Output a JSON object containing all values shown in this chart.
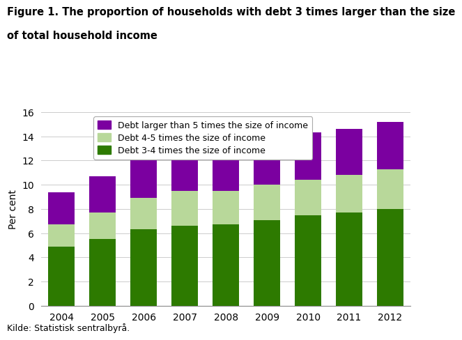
{
  "years": [
    "2004",
    "2005",
    "2006",
    "2007",
    "2008",
    "2009",
    "2010",
    "2011",
    "2012"
  ],
  "debt_3_4": [
    4.9,
    5.5,
    6.3,
    6.6,
    6.7,
    7.1,
    7.5,
    7.7,
    8.0
  ],
  "debt_4_5": [
    1.8,
    2.2,
    2.6,
    2.9,
    2.8,
    2.9,
    2.9,
    3.1,
    3.3
  ],
  "debt_5plus": [
    2.7,
    3.0,
    3.6,
    3.6,
    3.5,
    3.9,
    3.9,
    3.8,
    3.9
  ],
  "color_3_4": "#2d7a00",
  "color_4_5": "#b8d89a",
  "color_5plus": "#7b00a0",
  "legend_labels": [
    "Debt larger than 5 times the size of income",
    "Debt 4-5 times the size of income",
    "Debt 3-4 times the size of income"
  ],
  "title_line1": "Figure 1. The proportion of households with debt 3 times larger than the size",
  "title_line2": "of total household income",
  "ylabel": "Per cent",
  "ylim": [
    0,
    16
  ],
  "yticks": [
    0,
    2,
    4,
    6,
    8,
    10,
    12,
    14,
    16
  ],
  "footnote": "Kilde: Statistisk sentralbyrå.",
  "bar_width": 0.65
}
